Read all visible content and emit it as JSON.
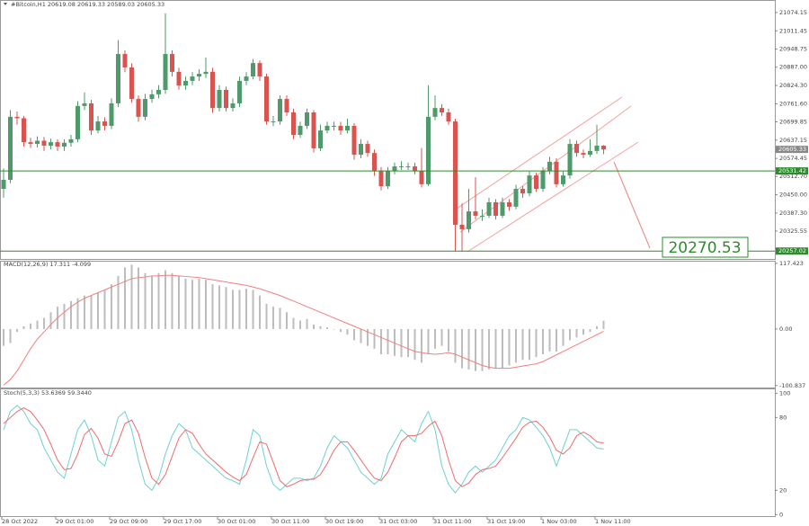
{
  "chart_data": [
    {
      "type": "candlestick",
      "title": "#Bitcoin,H1 20619.08 20619.33 20589.03 20605.33",
      "ylim": [
        20230,
        21117
      ],
      "yticks": [
        21074.15,
        21011.45,
        20948.75,
        {
          "value": 20887.0,
          "label": "20887.00"
        },
        {
          "value": 20824.3,
          "label": "20824.30"
        },
        {
          "value": 20761.6,
          "label": "20761.60"
        },
        20699.85,
        20637.15,
        20574.45,
        {
          "value": 20512.7,
          "label": "20512.70"
        },
        {
          "value": 20450.0,
          "label": "20450.00"
        },
        {
          "value": 20387.3,
          "label": "20387.30"
        },
        20325.55
      ],
      "xticks": [
        "28 Oct 2022",
        "29 Oct 01:00",
        "29 Oct 09:00",
        "29 Oct 17:00",
        "30 Oct 01:00",
        "30 Oct 11:00",
        "30 Oct 19:00",
        "31 Oct 03:00",
        "31 Oct 11:00",
        "31 Oct 19:00",
        "1 Nov 03:00",
        "1 Nov 11:00"
      ],
      "up_color": "#4f9a6a",
      "down_color": "#d9534f",
      "open": [
        20470,
        20501,
        20717,
        20712,
        20630,
        20624,
        20635,
        20618,
        20630,
        20615,
        20628,
        20640,
        20754,
        20763,
        20670,
        20701,
        20686,
        20763,
        20932,
        20886,
        20778,
        20717,
        20778,
        20794,
        20809,
        20932,
        20871,
        20824,
        20840,
        20855,
        20864,
        20871,
        20747,
        20809,
        20747,
        20763,
        20840,
        20855,
        20901,
        20855,
        20701,
        20701,
        20778,
        20732,
        20655,
        20686,
        20732,
        20609,
        20670,
        20686,
        20686,
        20670,
        20686,
        20587,
        20624,
        20593,
        20532,
        20479,
        20532,
        20547,
        20547,
        20547,
        20532,
        20486,
        20717,
        20747,
        20732,
        20701,
        20347,
        20332,
        20393,
        20378,
        20378,
        20424,
        20378,
        20424,
        20409,
        20470,
        20455,
        20516,
        20470,
        20532,
        20563,
        20486,
        20516,
        20624,
        20593,
        20587,
        20600,
        20618
      ],
      "high": [
        20540,
        20740,
        20735,
        20720,
        20645,
        20650,
        20648,
        20642,
        20640,
        20640,
        20655,
        20770,
        20800,
        20775,
        20720,
        20715,
        20780,
        20980,
        20945,
        20900,
        20790,
        20795,
        20810,
        20825,
        21071,
        20945,
        20885,
        20855,
        20870,
        20880,
        20920,
        20885,
        20825,
        20820,
        20780,
        20855,
        20870,
        20915,
        20910,
        20865,
        20720,
        20790,
        20790,
        20745,
        20700,
        20745,
        20740,
        20690,
        20700,
        20700,
        20700,
        20710,
        20695,
        20640,
        20635,
        20605,
        20545,
        20545,
        20560,
        20565,
        20560,
        20560,
        20610,
        20825,
        20790,
        20760,
        20745,
        20710,
        20420,
        20470,
        20510,
        20400,
        20440,
        20435,
        20440,
        20435,
        20485,
        20480,
        20530,
        20525,
        20545,
        20580,
        20575,
        20530,
        20640,
        20635,
        20605,
        20640,
        20690,
        20620
      ],
      "low": [
        20440,
        20490,
        20690,
        20615,
        20610,
        20612,
        20600,
        20605,
        20600,
        20600,
        20615,
        20630,
        20740,
        20655,
        20660,
        20670,
        20675,
        20750,
        20870,
        20765,
        20700,
        20705,
        20765,
        20780,
        20795,
        20855,
        20810,
        20810,
        20825,
        20840,
        20850,
        20730,
        20735,
        20735,
        20735,
        20750,
        20825,
        20845,
        20840,
        20690,
        20685,
        20690,
        20720,
        20640,
        20645,
        20675,
        20595,
        20600,
        20660,
        20670,
        20655,
        20660,
        20570,
        20575,
        20580,
        20515,
        20465,
        20470,
        20520,
        20535,
        20535,
        20520,
        20475,
        20480,
        20705,
        20720,
        20690,
        20255,
        20255,
        20320,
        20365,
        20360,
        20370,
        20365,
        20370,
        20395,
        20400,
        20440,
        20445,
        20460,
        20460,
        20520,
        20475,
        20478,
        20505,
        20580,
        20575,
        20580,
        20590,
        20589
      ],
      "close": [
        20501,
        20717,
        20712,
        20630,
        20624,
        20635,
        20618,
        20630,
        20615,
        20628,
        20640,
        20754,
        20763,
        20670,
        20701,
        20686,
        20763,
        20932,
        20886,
        20778,
        20717,
        20778,
        20794,
        20809,
        20932,
        20871,
        20824,
        20840,
        20855,
        20864,
        20871,
        20747,
        20809,
        20747,
        20763,
        20840,
        20855,
        20901,
        20855,
        20701,
        20701,
        20778,
        20732,
        20655,
        20686,
        20732,
        20609,
        20670,
        20686,
        20686,
        20670,
        20686,
        20587,
        20624,
        20593,
        20532,
        20479,
        20532,
        20547,
        20547,
        20547,
        20532,
        20486,
        20717,
        20747,
        20732,
        20701,
        20347,
        20332,
        20393,
        20378,
        20378,
        20424,
        20378,
        20424,
        20409,
        20470,
        20455,
        20516,
        20470,
        20532,
        20563,
        20486,
        20516,
        20624,
        20593,
        20587,
        20600,
        20618,
        20605
      ],
      "current_price": 20605.33,
      "levels": [
        20531.42,
        20257.02
      ],
      "level_color": "#2e8b2e",
      "annotation": "20270.53"
    },
    {
      "type": "macd",
      "title": "MACD(12,26,9) 17.311 -4.099",
      "ylim": [
        -106,
        122
      ],
      "yticks": [
        117.423,
        {
          "value": 0,
          "label": "0.00"
        },
        -100.837
      ],
      "series": [
        {
          "name": "MACD",
          "color": "#bdbdbd",
          "values": [
            -30,
            -25,
            -5,
            5,
            10,
            15,
            20,
            30,
            40,
            45,
            50,
            55,
            60,
            60,
            65,
            70,
            80,
            95,
            110,
            115,
            110,
            100,
            95,
            100,
            105,
            100,
            95,
            90,
            88,
            90,
            88,
            80,
            78,
            75,
            70,
            70,
            72,
            70,
            60,
            45,
            40,
            38,
            30,
            20,
            15,
            18,
            8,
            5,
            3,
            0,
            -5,
            -10,
            -20,
            -25,
            -30,
            -35,
            -45,
            -45,
            -48,
            -50,
            -50,
            -55,
            -60,
            -45,
            -35,
            -30,
            -40,
            -60,
            -70,
            -72,
            -75,
            -75,
            -72,
            -70,
            -70,
            -65,
            -60,
            -55,
            -55,
            -50,
            -45,
            -40,
            -40,
            -30,
            -20,
            -15,
            -10,
            -5,
            5,
            15
          ]
        },
        {
          "name": "Signal",
          "color": "#f08080",
          "values": [
            -100,
            -90,
            -75,
            -55,
            -35,
            -18,
            -5,
            8,
            20,
            30,
            40,
            48,
            55,
            60,
            65,
            70,
            75,
            80,
            85,
            90,
            92,
            93,
            95,
            95,
            96,
            96,
            95,
            94,
            93,
            92,
            90,
            88,
            86,
            84,
            82,
            80,
            78,
            75,
            72,
            68,
            64,
            60,
            55,
            50,
            45,
            40,
            35,
            30,
            25,
            20,
            15,
            10,
            5,
            0,
            -5,
            -10,
            -15,
            -20,
            -25,
            -30,
            -35,
            -40,
            -42,
            -44,
            -45,
            -44,
            -42,
            -45,
            -50,
            -55,
            -60,
            -65,
            -68,
            -70,
            -70,
            -70,
            -68,
            -66,
            -64,
            -62,
            -58,
            -52,
            -46,
            -40,
            -34,
            -28,
            -22,
            -16,
            -10,
            -4
          ]
        }
      ]
    },
    {
      "type": "stochastic",
      "title": "Stoch(5,3,3) 53.6369 59.3440",
      "ylim": [
        -2,
        104
      ],
      "yticks": [
        100,
        80,
        20,
        0
      ],
      "series": [
        {
          "name": "Main",
          "color": "#6fd0d0",
          "values": [
            70,
            85,
            90,
            85,
            75,
            70,
            55,
            45,
            35,
            30,
            50,
            70,
            78,
            65,
            45,
            40,
            60,
            80,
            85,
            70,
            45,
            25,
            20,
            30,
            50,
            65,
            75,
            70,
            55,
            50,
            45,
            40,
            35,
            30,
            28,
            25,
            45,
            70,
            65,
            40,
            25,
            20,
            25,
            30,
            30,
            28,
            30,
            40,
            55,
            65,
            60,
            55,
            45,
            35,
            30,
            25,
            30,
            50,
            60,
            70,
            65,
            60,
            75,
            85,
            70,
            40,
            25,
            18,
            25,
            35,
            40,
            35,
            40,
            45,
            55,
            65,
            70,
            80,
            78,
            72,
            65,
            55,
            40,
            55,
            70,
            70,
            65,
            60,
            55,
            54
          ]
        },
        {
          "name": "Signal",
          "color": "#f06b6b",
          "values": [
            75,
            80,
            85,
            88,
            85,
            78,
            70,
            58,
            45,
            37,
            38,
            50,
            66,
            71,
            63,
            50,
            48,
            60,
            75,
            78,
            67,
            47,
            30,
            25,
            33,
            48,
            63,
            70,
            67,
            58,
            50,
            45,
            40,
            35,
            31,
            28,
            33,
            47,
            60,
            58,
            43,
            28,
            23,
            25,
            28,
            29,
            29,
            33,
            42,
            53,
            60,
            60,
            53,
            45,
            37,
            30,
            28,
            35,
            47,
            60,
            65,
            65,
            67,
            73,
            77,
            65,
            45,
            28,
            23,
            26,
            33,
            37,
            38,
            40,
            47,
            55,
            63,
            72,
            76,
            77,
            72,
            64,
            53,
            50,
            55,
            65,
            68,
            65,
            60,
            59
          ]
        }
      ]
    }
  ]
}
